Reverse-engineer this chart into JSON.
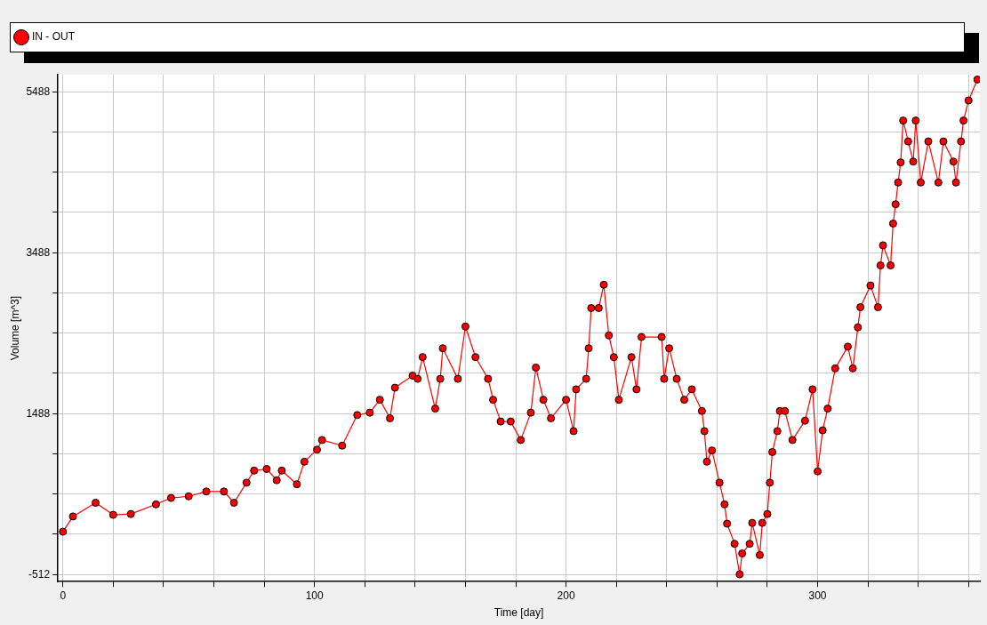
{
  "chart_data": {
    "type": "line",
    "xlabel": "Time [day]",
    "ylabel": "Volume [m^3]",
    "xlim": [
      -2,
      364.5
    ],
    "ylim": [
      -600,
      5700
    ],
    "xticks": [
      0,
      {
        "value": 20,
        "label": null
      },
      {
        "value": 40,
        "label": null
      },
      {
        "value": 60,
        "label": null
      },
      {
        "value": 80,
        "label": null
      },
      100,
      {
        "value": 120,
        "label": null
      },
      {
        "value": 140,
        "label": null
      },
      {
        "value": 160,
        "label": null
      },
      {
        "value": 180,
        "label": null
      },
      200,
      {
        "value": 220,
        "label": null
      },
      {
        "value": 240,
        "label": null
      },
      {
        "value": 260,
        "label": null
      },
      {
        "value": 280,
        "label": null
      },
      300,
      {
        "value": 320,
        "label": null
      },
      {
        "value": 340,
        "label": null
      },
      {
        "value": 360,
        "label": null
      }
    ],
    "yticks": [
      -512,
      {
        "value": -12,
        "label": null
      },
      {
        "value": 488,
        "label": null
      },
      {
        "value": 988,
        "label": null
      },
      1488,
      {
        "value": 1988,
        "label": null
      },
      {
        "value": 2488,
        "label": null
      },
      {
        "value": 2988,
        "label": null
      },
      3488,
      {
        "value": 3988,
        "label": null
      },
      {
        "value": 4488,
        "label": null
      },
      {
        "value": 4988,
        "label": null
      },
      5488
    ],
    "grid": true,
    "legend": "top",
    "marker": "circle",
    "line_style": "solid",
    "series": [
      {
        "name": "IN - OUT",
        "color": "#ff0000",
        "x": [
          0,
          4,
          13,
          20,
          27,
          37,
          43,
          50,
          57,
          64,
          68,
          73,
          76,
          81,
          85,
          87,
          93,
          96,
          101,
          103,
          111,
          117,
          122,
          126,
          130,
          132,
          139,
          141,
          143,
          148,
          150,
          151,
          157,
          160,
          164,
          169,
          171,
          174,
          178,
          182,
          186,
          188,
          191,
          194,
          200,
          203,
          204,
          208,
          209,
          210,
          213,
          215,
          217,
          219,
          221,
          226,
          228,
          230,
          238,
          239,
          241,
          244,
          247,
          250,
          254,
          255,
          256,
          258,
          261,
          263,
          264,
          267,
          269,
          270,
          273,
          274,
          277,
          278,
          280,
          281,
          282,
          284,
          285,
          287,
          290,
          295,
          298,
          300,
          302,
          304,
          307,
          312,
          314,
          316,
          317,
          321,
          324,
          325,
          326,
          329,
          330,
          331,
          332,
          333,
          334,
          336,
          338,
          339,
          341,
          344,
          348,
          350,
          354,
          355,
          357,
          358,
          360,
          363.5
        ],
        "values": [
          20,
          210,
          380,
          230,
          240,
          360,
          440,
          460,
          520,
          520,
          380,
          630,
          780,
          800,
          660,
          780,
          610,
          890,
          1040,
          1160,
          1090,
          1470,
          1500,
          1660,
          1430,
          1810,
          1960,
          1920,
          2190,
          1550,
          1920,
          2300,
          1920,
          2570,
          2190,
          1920,
          1660,
          1390,
          1390,
          1160,
          1500,
          2060,
          1660,
          1430,
          1660,
          1270,
          1790,
          1920,
          2300,
          2800,
          2800,
          3090,
          2460,
          2190,
          1660,
          2190,
          1790,
          2440,
          2440,
          1920,
          2300,
          1920,
          1660,
          1790,
          1520,
          1270,
          890,
          1030,
          630,
          360,
          120,
          -130,
          -510,
          -250,
          -130,
          130,
          -270,
          130,
          240,
          630,
          1010,
          1270,
          1520,
          1520,
          1160,
          1400,
          1790,
          770,
          1280,
          1550,
          2050,
          2320,
          2050,
          2560,
          2810,
          3080,
          2810,
          3330,
          3580,
          3330,
          3850,
          4090,
          4360,
          4610,
          5130,
          4870,
          4620,
          5130,
          4360,
          4870,
          4360,
          4870,
          4620,
          4360,
          4870,
          5130,
          5380,
          5640
        ]
      }
    ]
  }
}
